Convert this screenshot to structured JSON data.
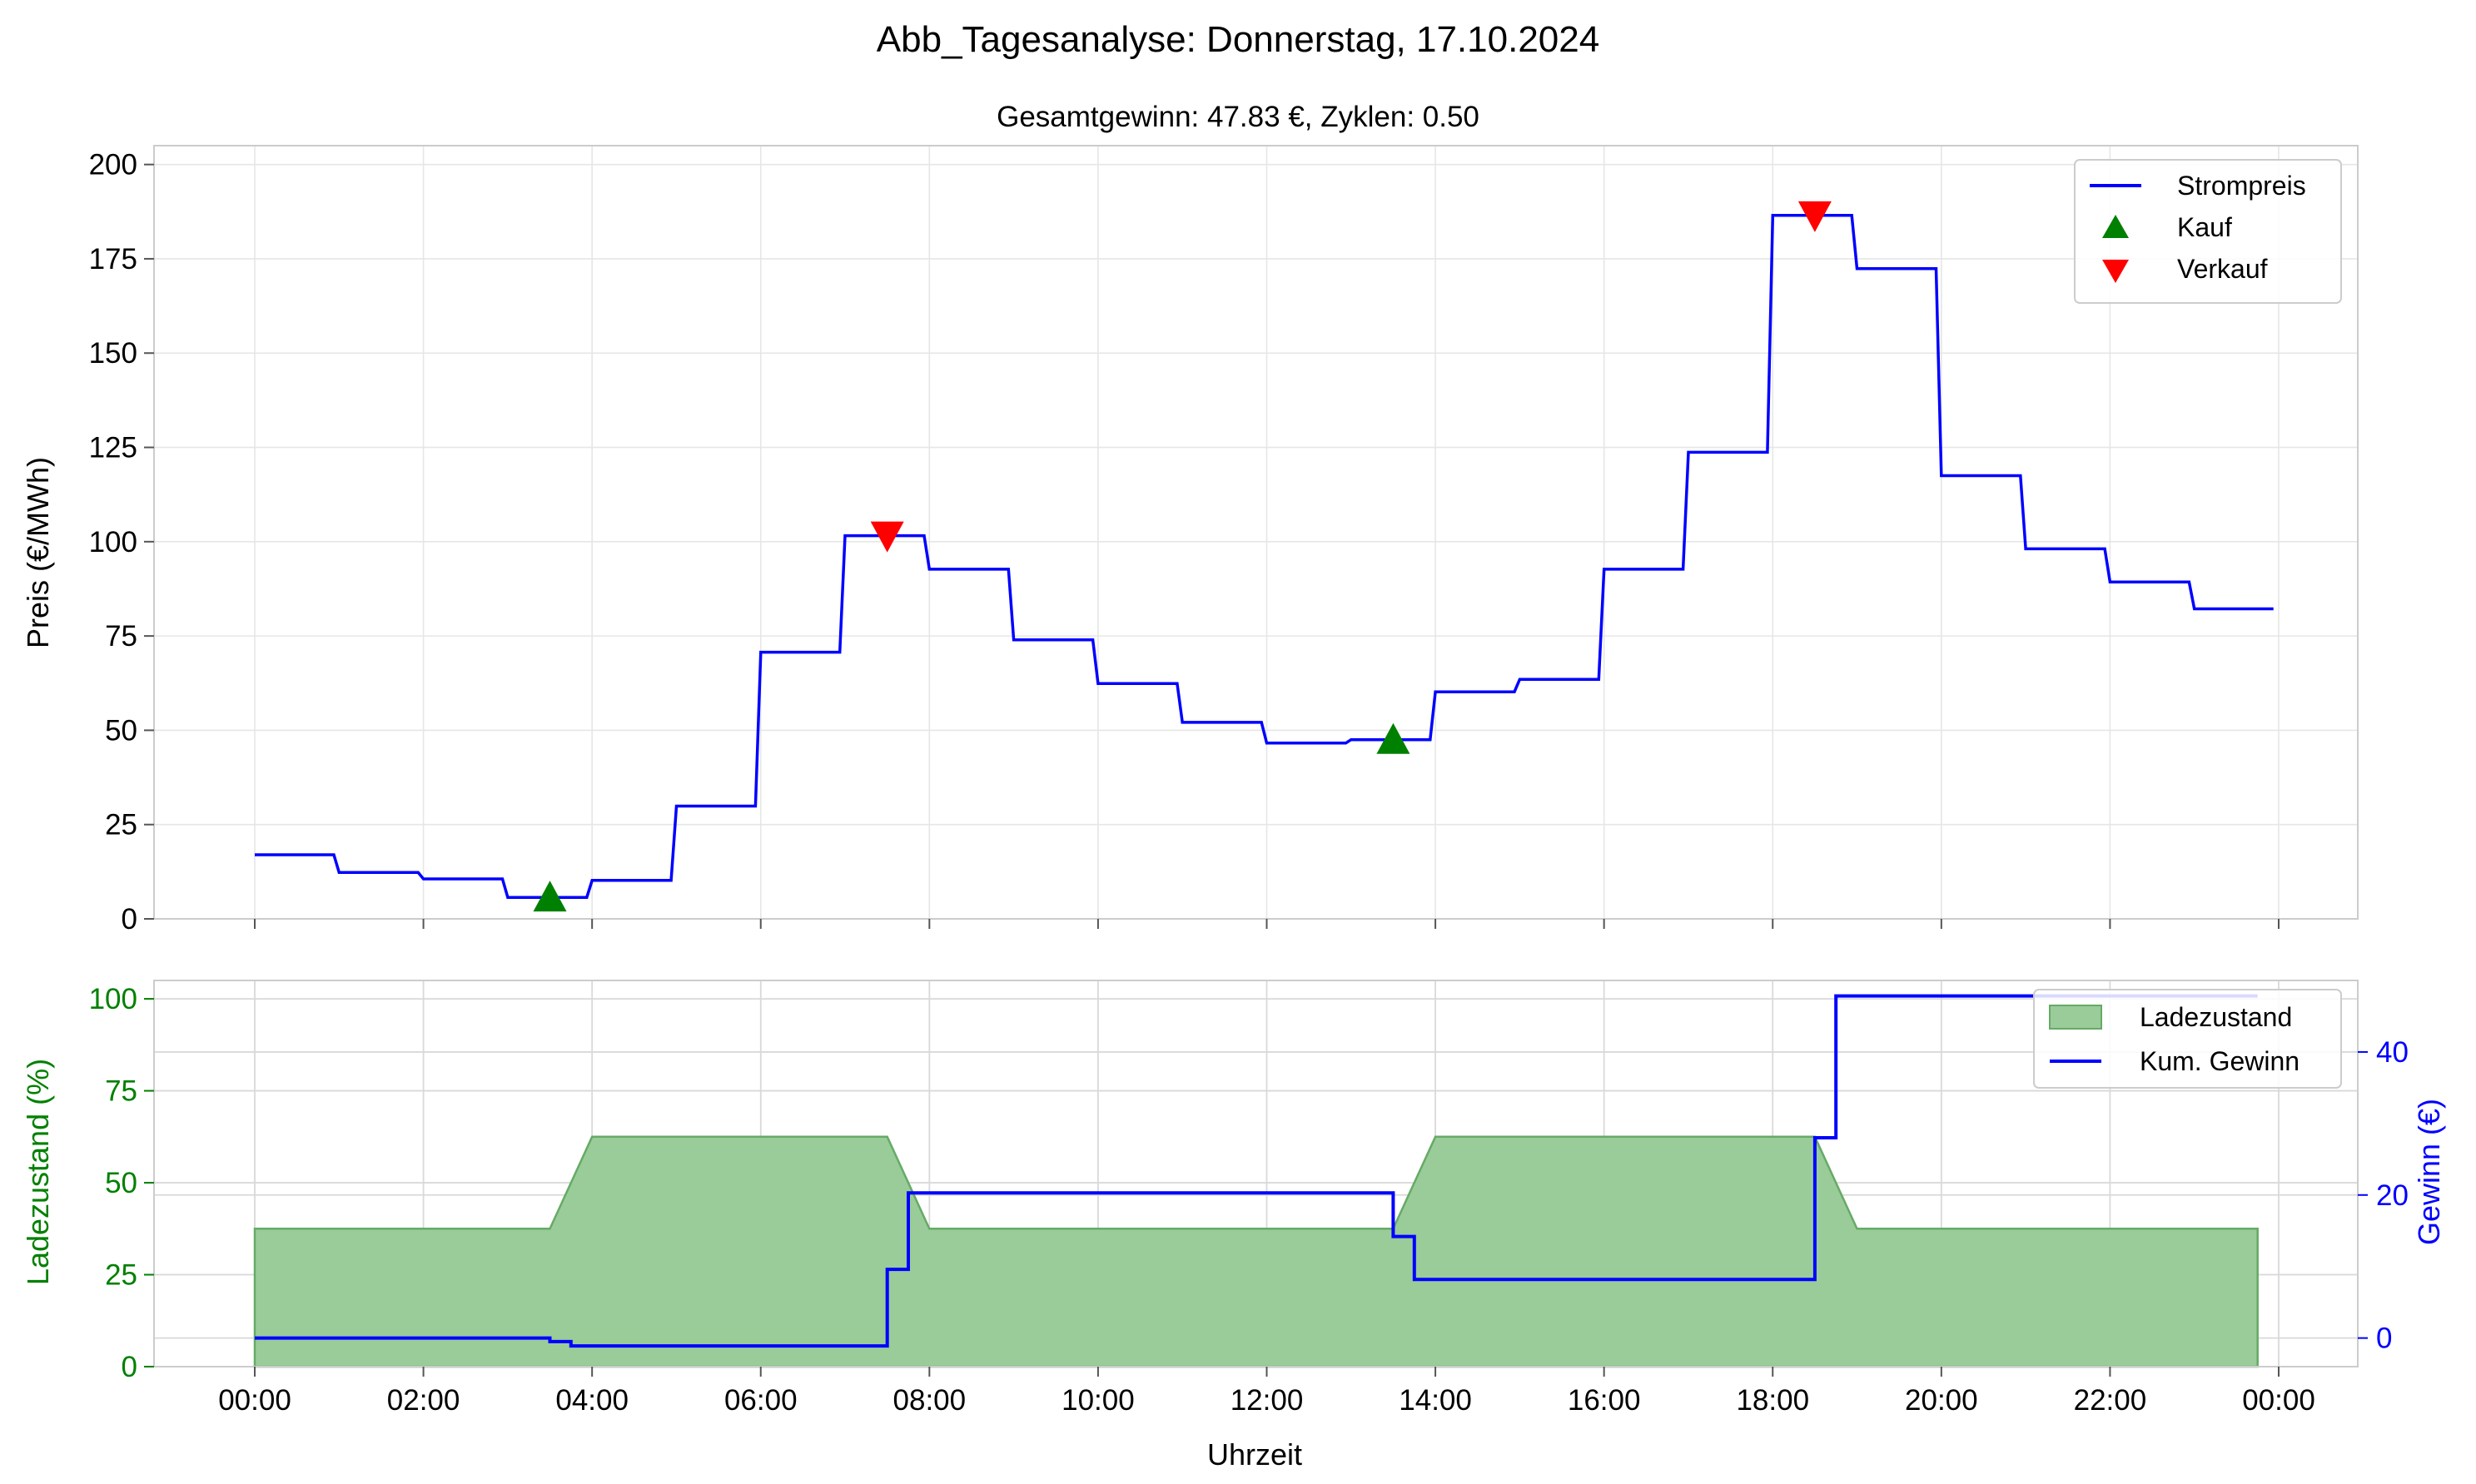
{
  "figure": {
    "title": "Abb_Tagesanalyse: Donnerstag, 17.10.2024",
    "subtitle": "Gesamtgewinn: 47.83 €, Zyklen: 0.50"
  },
  "colors": {
    "price": "#0000ff",
    "buy": "#008000",
    "sell": "#ff0000",
    "soc_fill": "#99cc99",
    "soc_edge": "#66aa66",
    "soc_axis": "#008000",
    "profit": "#0000ff"
  },
  "chart_data": [
    {
      "type": "line",
      "panel": "top",
      "xlabel": "",
      "ylabel": "Preis (€/MWh)",
      "ylim": [
        0,
        205
      ],
      "yticks": [
        0,
        25,
        50,
        75,
        100,
        125,
        150,
        175,
        200
      ],
      "grid": true,
      "legend": "top-right",
      "series": [
        {
          "name": "Strompreis",
          "step_hours": 0.25,
          "values": [
            17.0,
            17.0,
            17.0,
            17.0,
            12.3,
            12.3,
            12.3,
            12.3,
            10.6,
            10.6,
            10.6,
            10.6,
            5.7,
            5.7,
            5.7,
            5.7,
            10.2,
            10.2,
            10.2,
            10.2,
            29.9,
            29.9,
            29.9,
            29.9,
            70.7,
            70.7,
            70.7,
            70.7,
            101.6,
            101.6,
            101.6,
            101.6,
            92.7,
            92.7,
            92.7,
            92.7,
            74.0,
            74.0,
            74.0,
            74.0,
            62.4,
            62.4,
            62.4,
            62.4,
            52.1,
            52.1,
            52.1,
            52.1,
            46.6,
            46.6,
            46.6,
            46.6,
            47.5,
            47.5,
            47.5,
            47.5,
            60.2,
            60.2,
            60.2,
            60.2,
            63.5,
            63.5,
            63.5,
            63.5,
            92.7,
            92.7,
            92.7,
            92.7,
            123.7,
            123.7,
            123.7,
            123.7,
            186.5,
            186.5,
            186.5,
            186.5,
            172.4,
            172.4,
            172.4,
            172.4,
            117.5,
            117.5,
            117.5,
            117.5,
            98.1,
            98.1,
            98.1,
            98.1,
            89.3,
            89.3,
            89.3,
            89.3,
            82.2,
            82.2,
            82.2,
            82.2
          ]
        },
        {
          "name": "Kauf",
          "points": [
            {
              "time": "03:30",
              "value": 5.7
            },
            {
              "time": "13:30",
              "value": 47.5
            }
          ]
        },
        {
          "name": "Verkauf",
          "points": [
            {
              "time": "07:30",
              "value": 101.6
            },
            {
              "time": "18:30",
              "value": 186.5
            }
          ]
        }
      ]
    },
    {
      "type": "area",
      "panel": "bottom",
      "xlabel": "Uhrzeit",
      "ylabel": "Ladezustand (%)",
      "ylabel_right": "Gewinn (€)",
      "ylim": [
        0,
        105
      ],
      "ylim_right": [
        -4,
        50
      ],
      "yticks": [
        0,
        25,
        50,
        75,
        100
      ],
      "yticks_right": [
        0,
        20,
        40
      ],
      "xticks": [
        "00:00",
        "02:00",
        "04:00",
        "06:00",
        "08:00",
        "10:00",
        "12:00",
        "14:00",
        "16:00",
        "18:00",
        "20:00",
        "22:00",
        "00:00"
      ],
      "grid": true,
      "legend": "top-right",
      "series": [
        {
          "name": "Ladezustand",
          "points": [
            {
              "time": "00:00",
              "value": 37.5
            },
            {
              "time": "03:30",
              "value": 37.5
            },
            {
              "time": "04:00",
              "value": 62.5
            },
            {
              "time": "07:30",
              "value": 62.5
            },
            {
              "time": "08:00",
              "value": 37.5
            },
            {
              "time": "13:30",
              "value": 37.5
            },
            {
              "time": "14:00",
              "value": 62.5
            },
            {
              "time": "18:30",
              "value": 62.5
            },
            {
              "time": "19:00",
              "value": 37.5
            },
            {
              "time": "23:45",
              "value": 37.5
            }
          ]
        },
        {
          "name": "Kum. Gewinn",
          "axis": "right",
          "steps": [
            {
              "time": "00:00",
              "value": 0.0
            },
            {
              "time": "03:30",
              "value": -0.5
            },
            {
              "time": "03:45",
              "value": -1.1
            },
            {
              "time": "07:30",
              "value": 9.6
            },
            {
              "time": "07:45",
              "value": 20.3
            },
            {
              "time": "13:30",
              "value": 14.2
            },
            {
              "time": "13:45",
              "value": 8.2
            },
            {
              "time": "18:30",
              "value": 28.0
            },
            {
              "time": "18:45",
              "value": 47.83
            },
            {
              "time": "23:45",
              "value": 47.83
            }
          ]
        }
      ]
    }
  ]
}
